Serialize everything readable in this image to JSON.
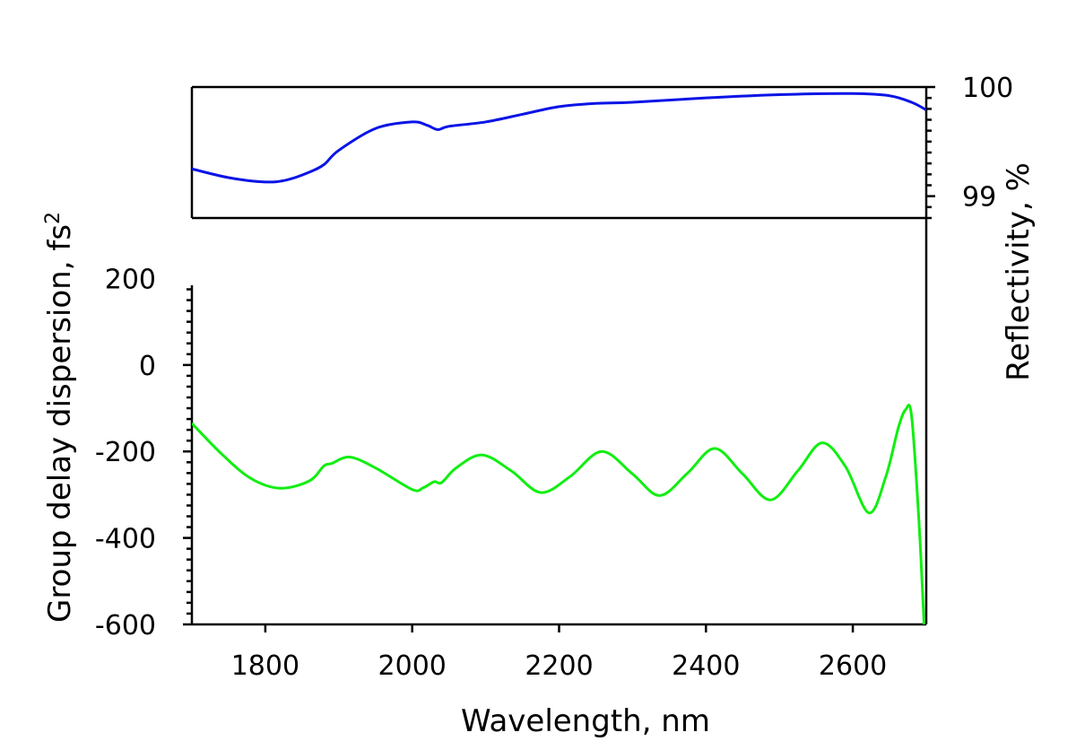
{
  "chart_data": {
    "type": "line",
    "xlabel": "Wavelength, nm",
    "xlim": [
      1700,
      2700
    ],
    "xticks": [
      1800,
      2000,
      2200,
      2400,
      2600
    ],
    "panels": [
      {
        "id": "reflectivity",
        "ylabel": "Reflectivity, %",
        "axis_side": "right",
        "ylim": [
          98.8,
          100.0
        ],
        "yticks": [
          99,
          100
        ],
        "series": [
          {
            "color": "#0a14e6",
            "x": [
              1700,
              1750,
              1800,
              1830,
              1860,
              1880,
              1900,
              1950,
              2000,
              2020,
              2035,
              2050,
              2100,
              2150,
              2200,
              2250,
              2300,
              2400,
              2500,
              2600,
              2650,
              2680,
              2700
            ],
            "y": [
              99.25,
              99.17,
              99.13,
              99.15,
              99.22,
              99.29,
              99.42,
              99.62,
              99.68,
              99.65,
              99.61,
              99.64,
              99.68,
              99.75,
              99.82,
              99.85,
              99.86,
              99.9,
              99.93,
              99.94,
              99.92,
              99.86,
              99.79
            ]
          }
        ]
      },
      {
        "id": "gdd",
        "ylabel": "Group delay dispersion, fs",
        "ylabel_superscript": "2",
        "axis_side": "left",
        "ylim": [
          -600,
          340
        ],
        "yticks": [
          -600,
          -400,
          -200,
          0,
          200
        ],
        "ytick_labels": [
          "-600",
          "-400",
          "-200",
          "0",
          "200"
        ],
        "series": [
          {
            "color": "#11ee11",
            "x": [
              1700,
              1740,
              1780,
              1820,
              1860,
              1880,
              1890,
              1915,
              1950,
              2000,
              2015,
              2030,
              2040,
              2060,
              2095,
              2135,
              2175,
              2215,
              2258,
              2300,
              2337,
              2375,
              2412,
              2450,
              2488,
              2525,
              2558,
              2590,
              2622,
              2645,
              2662,
              2672,
              2680,
              2690,
              2697
            ],
            "y": [
              -135,
              -205,
              -262,
              -285,
              -268,
              -233,
              -228,
              -213,
              -238,
              -288,
              -284,
              -270,
              -272,
              -238,
              -208,
              -245,
              -295,
              -258,
              -200,
              -252,
              -302,
              -250,
              -193,
              -252,
              -312,
              -245,
              -180,
              -235,
              -342,
              -258,
              -145,
              -103,
              -118,
              -360,
              -600
            ]
          }
        ]
      }
    ]
  }
}
